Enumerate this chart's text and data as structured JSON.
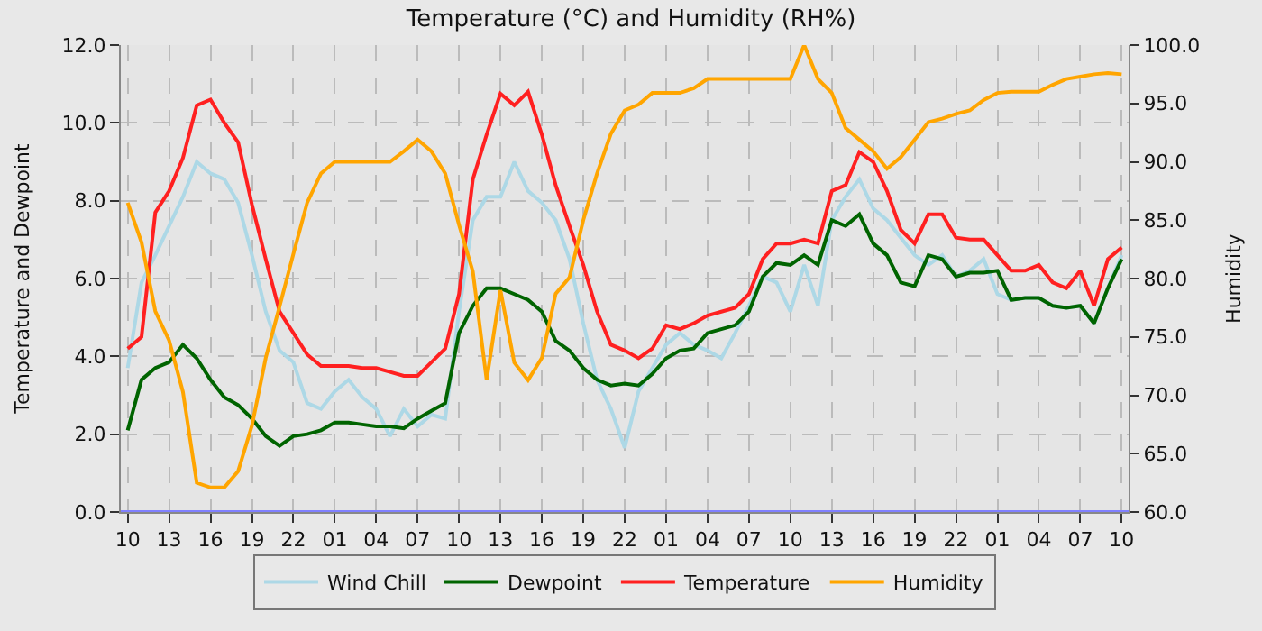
{
  "chart_data": {
    "type": "line",
    "title": "Temperature (°C) and Humidity (RH%)",
    "ylabel": "Temperature and Dewpoint",
    "y2label": "Humidity",
    "categories": [
      "10",
      null,
      null,
      "13",
      null,
      null,
      "16",
      null,
      null,
      "19",
      null,
      null,
      "22",
      null,
      null,
      "01",
      null,
      null,
      "04",
      null,
      null,
      "07",
      null,
      null,
      "10",
      null,
      null,
      "13",
      null,
      null,
      "16",
      null,
      null,
      "19",
      null,
      null,
      "22",
      null,
      null,
      "01",
      null,
      null,
      "04",
      null,
      null,
      "07",
      null,
      null,
      "10",
      null,
      null,
      "13",
      null,
      null,
      "16",
      null,
      null,
      "19",
      null,
      null,
      "22",
      null,
      null,
      "01",
      null,
      null,
      "04",
      null,
      null,
      "07",
      null,
      null,
      "10"
    ],
    "series": [
      {
        "name": "Wind Chill",
        "color": "#add8e6",
        "values": [
          3.7,
          5.9,
          6.6,
          7.35,
          8.1,
          9.0,
          8.7,
          8.55,
          7.95,
          6.6,
          5.15,
          4.15,
          3.85,
          2.8,
          2.65,
          3.1,
          3.4,
          2.95,
          2.65,
          1.95,
          2.65,
          2.2,
          2.5,
          2.4,
          5.15,
          7.5,
          8.1,
          8.1,
          9.0,
          8.25,
          7.95,
          7.5,
          6.5,
          4.85,
          3.4,
          2.65,
          1.65,
          3.1,
          3.7,
          4.3,
          4.6,
          4.3,
          4.15,
          3.95,
          4.6,
          5.3,
          6.05,
          5.9,
          5.15,
          6.35,
          5.3,
          7.5,
          8.1,
          8.55,
          7.8,
          7.5,
          7.05,
          6.6,
          6.35,
          6.6,
          6.05,
          6.2,
          6.5,
          5.6,
          5.45,
          5.5,
          5.5,
          5.3,
          5.25,
          5.3,
          4.85,
          5.75,
          6.6
        ]
      },
      {
        "name": "Dewpoint",
        "color": "#006400",
        "values": [
          2.1,
          3.4,
          3.7,
          3.85,
          4.3,
          3.95,
          3.4,
          2.95,
          2.75,
          2.4,
          1.95,
          1.7,
          1.95,
          2.0,
          2.1,
          2.3,
          2.3,
          2.25,
          2.2,
          2.2,
          2.15,
          2.4,
          2.6,
          2.8,
          4.6,
          5.3,
          5.75,
          5.75,
          5.6,
          5.45,
          5.15,
          4.4,
          4.15,
          3.7,
          3.4,
          3.25,
          3.3,
          3.25,
          3.55,
          3.95,
          4.15,
          4.2,
          4.6,
          4.7,
          4.8,
          5.15,
          6.05,
          6.4,
          6.35,
          6.6,
          6.35,
          7.5,
          7.35,
          7.65,
          6.9,
          6.6,
          5.9,
          5.8,
          6.6,
          6.5,
          6.05,
          6.15,
          6.15,
          6.2,
          5.45,
          5.5,
          5.5,
          5.3,
          5.25,
          5.3,
          4.85,
          5.75,
          6.5
        ]
      },
      {
        "name": "Temperature",
        "color": "#ff2020",
        "values": [
          4.2,
          4.5,
          7.7,
          8.25,
          9.1,
          10.45,
          10.6,
          10.0,
          9.5,
          7.9,
          6.5,
          5.15,
          4.6,
          4.05,
          3.75,
          3.75,
          3.75,
          3.7,
          3.7,
          3.6,
          3.5,
          3.5,
          3.85,
          4.2,
          5.6,
          8.55,
          9.7,
          10.75,
          10.45,
          10.8,
          9.7,
          8.4,
          7.35,
          6.35,
          5.15,
          4.3,
          4.15,
          3.95,
          4.2,
          4.8,
          4.7,
          4.85,
          5.05,
          5.15,
          5.25,
          5.6,
          6.5,
          6.9,
          6.9,
          7.0,
          6.9,
          8.25,
          8.4,
          9.25,
          9.0,
          8.25,
          7.25,
          6.9,
          7.65,
          7.65,
          7.05,
          7.0,
          7.0,
          6.6,
          6.2,
          6.2,
          6.35,
          5.9,
          5.75,
          6.2,
          5.3,
          6.5,
          6.8
        ]
      },
      {
        "name": "Humidity",
        "color": "#ffa500",
        "axis": "y2",
        "values": [
          86.5,
          83.1,
          77.2,
          74.7,
          70.3,
          62.5,
          62.1,
          62.1,
          63.5,
          67.4,
          73.2,
          77.6,
          82.1,
          86.5,
          89.0,
          90.0,
          90.0,
          90.0,
          90.0,
          90.0,
          90.9,
          91.9,
          90.9,
          89.0,
          84.6,
          80.6,
          71.3,
          79.0,
          72.8,
          71.3,
          73.2,
          78.7,
          80.1,
          85.0,
          89.0,
          92.4,
          94.4,
          94.9,
          95.9,
          95.9,
          95.9,
          96.3,
          97.1,
          97.1,
          97.1,
          97.1,
          97.1,
          97.1,
          97.1,
          100.0,
          97.1,
          95.9,
          92.9,
          91.9,
          90.9,
          89.4,
          90.4,
          91.9,
          93.4,
          93.7,
          94.1,
          94.4,
          95.3,
          95.9,
          96.0,
          96.0,
          96.0,
          96.6,
          97.1,
          97.3,
          97.5,
          97.6,
          97.5
        ]
      }
    ],
    "ylim": [
      0,
      12
    ],
    "yticks": [
      {
        "value": 0,
        "label": "0.0"
      },
      {
        "value": 2,
        "label": "2.0"
      },
      {
        "value": 4,
        "label": "4.0"
      },
      {
        "value": 6,
        "label": "6.0"
      },
      {
        "value": 8,
        "label": "8.0"
      },
      {
        "value": 10,
        "label": "10.0"
      },
      {
        "value": 12,
        "label": "12.0"
      }
    ],
    "y2lim": [
      60,
      100
    ],
    "y2ticks": [
      {
        "value": 60,
        "label": "60.0"
      },
      {
        "value": 65,
        "label": "65.0"
      },
      {
        "value": 70,
        "label": "70.0"
      },
      {
        "value": 75,
        "label": "75.0"
      },
      {
        "value": 80,
        "label": "80.0"
      },
      {
        "value": 85,
        "label": "85.0"
      },
      {
        "value": 90,
        "label": "90.0"
      },
      {
        "value": 95,
        "label": "95.0"
      },
      {
        "value": 100,
        "label": "100.0"
      }
    ],
    "ref_lines": [
      {
        "axis": "y",
        "value": 0,
        "color": "#8080ff"
      }
    ],
    "grid": true,
    "legend": "bottom",
    "marker": "none",
    "line_style": "solid"
  }
}
